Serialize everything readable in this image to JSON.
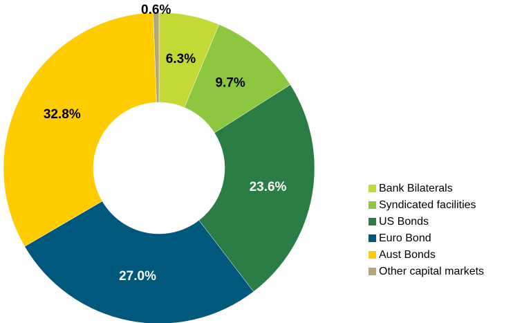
{
  "chart_data": {
    "type": "donut",
    "categories": [
      "Bank Bilaterals",
      "Syndicated facilities",
      "US Bonds",
      "Euro Bond",
      "Aust Bonds",
      "Other capital markets"
    ],
    "values": [
      6.3,
      9.7,
      23.6,
      27.0,
      32.8,
      0.6
    ],
    "value_labels": [
      "6.3%",
      "9.7%",
      "23.6%",
      "27.0%",
      "32.8%",
      "0.6%"
    ],
    "colors": [
      "#c5d936",
      "#8dc63f",
      "#2a7d45",
      "#00587c",
      "#ffcc00",
      "#b5a67a"
    ],
    "legend": "right"
  }
}
